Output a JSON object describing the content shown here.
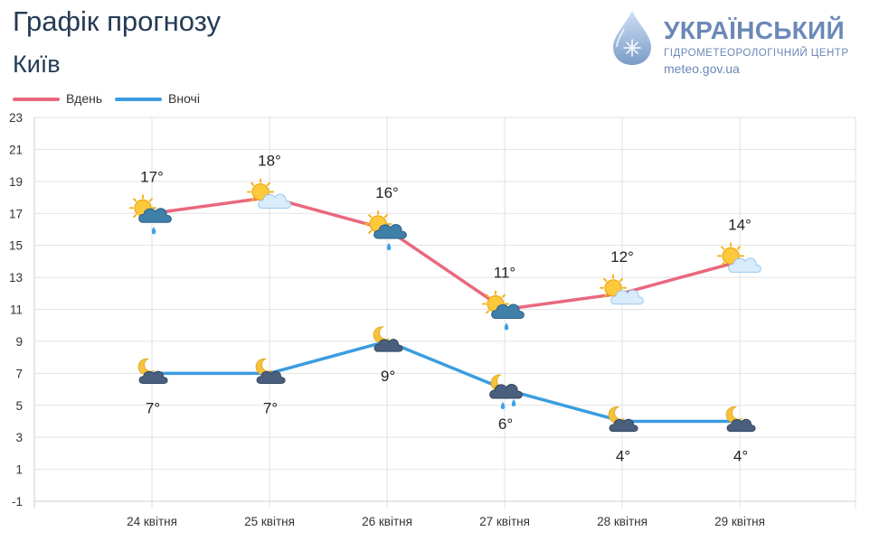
{
  "header": {
    "title": "Графік прогнозу",
    "city": "Київ"
  },
  "logo": {
    "line1": "УКРАЇНСЬКИЙ",
    "line2": "ГІДРОМЕТЕОРОЛОГІЧНИЙ ЦЕНТР",
    "line3": "meteo.gov.ua"
  },
  "colors": {
    "day": "#e9687e",
    "night": "#3c9ce0",
    "grid": "#e2e2e2",
    "title": "#243b55"
  },
  "legend": [
    {
      "label": "Вдень",
      "color": "#e9687e"
    },
    {
      "label": "Вночі",
      "color": "#3c9ce0"
    }
  ],
  "chart_data": {
    "type": "line",
    "categories": [
      "24 квітня",
      "25 квітня",
      "26 квітня",
      "27 квітня",
      "28 квітня",
      "29 квітня"
    ],
    "series": [
      {
        "name": "Вдень",
        "values": [
          17,
          18,
          16,
          11,
          12,
          14
        ],
        "labels": [
          "17°",
          "18°",
          "16°",
          "11°",
          "12°",
          "14°"
        ],
        "icons": [
          "sun-cloud-rain-icon",
          "sun-cloud-icon",
          "sun-cloud-rain-icon",
          "sun-cloud-rain-icon",
          "sun-cloud-icon",
          "sun-cloud-icon"
        ]
      },
      {
        "name": "Вночі",
        "values": [
          7,
          7,
          9,
          6,
          4,
          4
        ],
        "labels": [
          "7°",
          "7°",
          "9°",
          "6°",
          "4°",
          "4°"
        ],
        "icons": [
          "moon-cloud-icon",
          "moon-cloud-icon",
          "moon-cloud-icon",
          "moon-cloud-rain-icon",
          "moon-cloud-icon",
          "moon-cloud-icon"
        ]
      }
    ],
    "yticks": [
      23,
      21,
      19,
      17,
      15,
      13,
      11,
      9,
      7,
      5,
      3,
      1,
      -1
    ],
    "ylim": [
      -1,
      23
    ],
    "grid": true,
    "legend_position": "top-left"
  }
}
